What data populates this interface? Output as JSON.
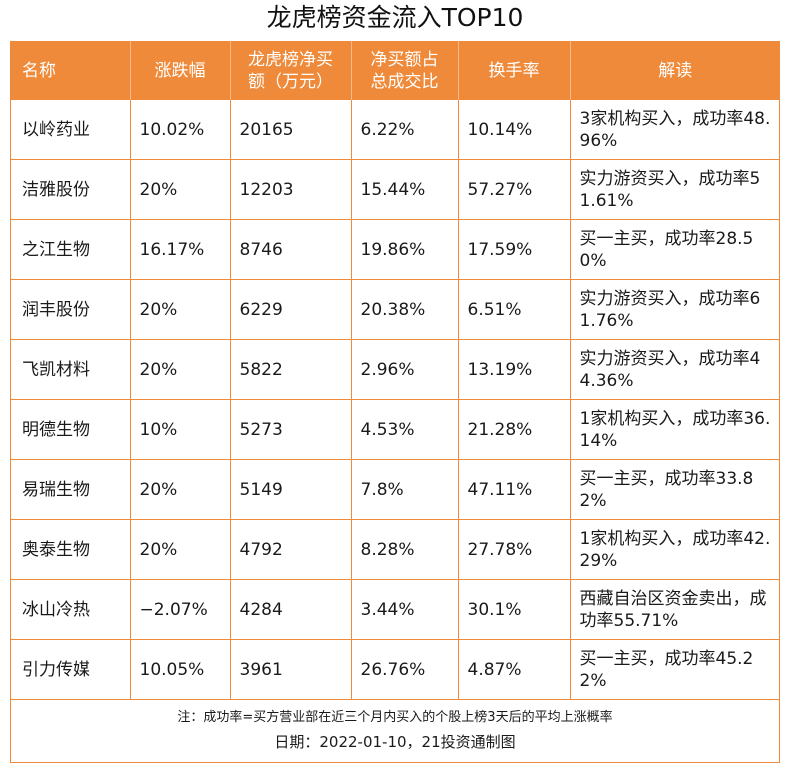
{
  "title": "龙虎榜资金流入TOP10",
  "headers": [
    "名称",
    "涨跌幅",
    "龙虎榜净买额（万元）",
    "净买额占总成交比",
    "换手率",
    "解读"
  ],
  "header_lines": [
    [
      "名称"
    ],
    [
      "涨跌幅"
    ],
    [
      "龙虎榜净买",
      "额（万元）"
    ],
    [
      "净买额占",
      "总成交比"
    ],
    [
      "换手率"
    ],
    [
      "解读"
    ]
  ],
  "rows": [
    {
      "name": "以岭药业",
      "change": "10.02%",
      "net_buy": "20165",
      "ratio": "6.22%",
      "turnover": "10.14%",
      "comment": "3家机构买入，成功率48.96%"
    },
    {
      "name": "洁雅股份",
      "change": "20%",
      "net_buy": "12203",
      "ratio": "15.44%",
      "turnover": "57.27%",
      "comment": "实力游资买入，成功率51.61%"
    },
    {
      "name": "之江生物",
      "change": "16.17%",
      "net_buy": "8746",
      "ratio": "19.86%",
      "turnover": "17.59%",
      "comment": "买一主买，成功率28.50%"
    },
    {
      "name": "润丰股份",
      "change": "20%",
      "net_buy": "6229",
      "ratio": "20.38%",
      "turnover": "6.51%",
      "comment": "实力游资买入，成功率61.76%"
    },
    {
      "name": "飞凯材料",
      "change": "20%",
      "net_buy": "5822",
      "ratio": "2.96%",
      "turnover": "13.19%",
      "comment": "实力游资买入，成功率44.36%"
    },
    {
      "name": "明德生物",
      "change": "10%",
      "net_buy": "5273",
      "ratio": "4.53%",
      "turnover": "21.28%",
      "comment": "1家机构买入，成功率36.14%"
    },
    {
      "name": "易瑞生物",
      "change": "20%",
      "net_buy": "5149",
      "ratio": "7.8%",
      "turnover": "47.11%",
      "comment": "买一主买，成功率33.82%"
    },
    {
      "name": "奥泰生物",
      "change": "20%",
      "net_buy": "4792",
      "ratio": "8.28%",
      "turnover": "27.78%",
      "comment": "1家机构买入，成功率42.29%"
    },
    {
      "name": "冰山冷热",
      "change": "−2.07%",
      "net_buy": "4284",
      "ratio": "3.44%",
      "turnover": "30.1%",
      "comment": "西藏自治区资金卖出，成功率55.71%"
    },
    {
      "name": "引力传媒",
      "change": "10.05%",
      "net_buy": "3961",
      "ratio": "26.76%",
      "turnover": "4.87%",
      "comment": "买一主买，成功率45.22%"
    }
  ],
  "note": "注：成功率=买方营业部在近三个月内买入的个股上榜3天后的平均上涨概率",
  "date": "日期：2022-01-10，21投资通制图"
}
